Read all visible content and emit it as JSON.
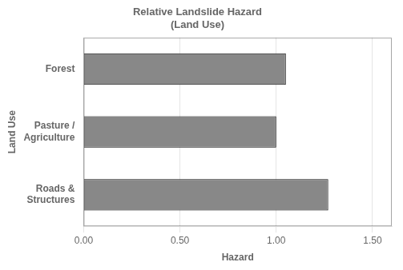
{
  "chart_data": {
    "type": "bar",
    "orientation": "horizontal",
    "title": "Relative Landslide Hazard\n(Land Use)",
    "categories": [
      "Roads &\nStructures",
      "Pasture /\nAgriculture",
      "Forest"
    ],
    "values": [
      1.27,
      1.0,
      1.05
    ],
    "color": "#888888",
    "xlabel": "Hazard",
    "ylabel": "Land Use",
    "xlim": [
      0.0,
      1.6
    ],
    "xticks": [
      {
        "value": 0.0,
        "label": "0.00"
      },
      {
        "value": 0.5,
        "label": "0.50"
      },
      {
        "value": 1.0,
        "label": "1.00"
      },
      {
        "value": 1.5,
        "label": "1.50"
      }
    ],
    "grid": true
  }
}
